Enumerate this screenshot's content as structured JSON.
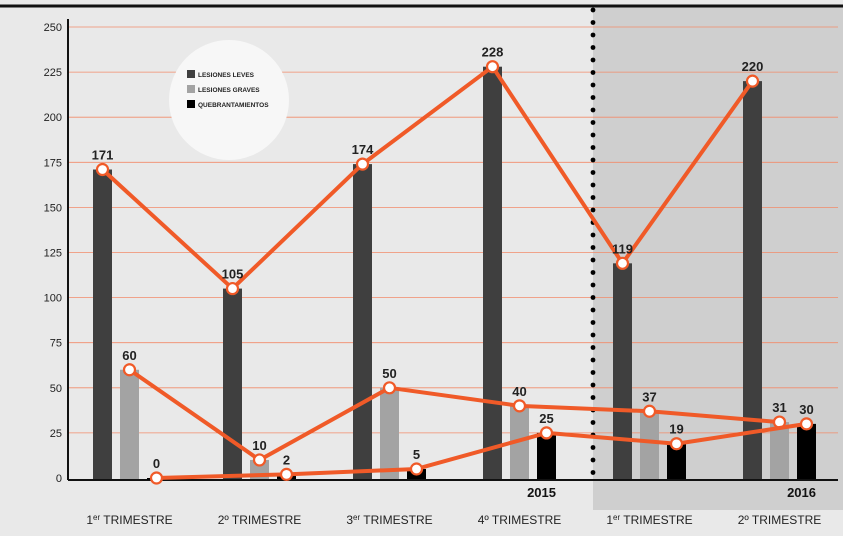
{
  "chart_data": {
    "type": "bar",
    "title": "",
    "xlabel": "",
    "ylabel": "",
    "ylim": [
      0,
      250
    ],
    "yticks": [
      0,
      25,
      50,
      75,
      100,
      125,
      150,
      175,
      200,
      225,
      250
    ],
    "grid": true,
    "categories": [
      {
        "main": "1",
        "sup": "er",
        "rest": " TRIMESTRE"
      },
      {
        "main": "2º TRIMESTRE",
        "sup": "",
        "rest": ""
      },
      {
        "main": "3",
        "sup": "er",
        "rest": " TRIMESTRE"
      },
      {
        "main": "4º TRIMESTRE",
        "sup": "",
        "rest": ""
      },
      {
        "main": "1",
        "sup": "er",
        "rest": " TRIMESTRE"
      },
      {
        "main": "2º TRIMESTRE",
        "sup": "",
        "rest": ""
      }
    ],
    "years": [
      {
        "label": "2015",
        "after_category": 3
      },
      {
        "label": "2016",
        "after_category": 5
      }
    ],
    "series": [
      {
        "name": "LESIONES LEVES",
        "color": "#3f3f3f",
        "values": [
          171,
          105,
          174,
          228,
          119,
          220
        ]
      },
      {
        "name": "LESIONES GRAVES",
        "color": "#a3a3a3",
        "values": [
          60,
          10,
          50,
          40,
          37,
          31
        ]
      },
      {
        "name": "QUEBRANTAMIENTOS",
        "color": "#000000",
        "values": [
          0,
          2,
          5,
          25,
          19,
          30
        ]
      }
    ],
    "line_color": "#f05a28",
    "gridline_color": "#f28b6a",
    "shaded_region_color": "#cfcfcf",
    "legend_position": "top-left"
  }
}
